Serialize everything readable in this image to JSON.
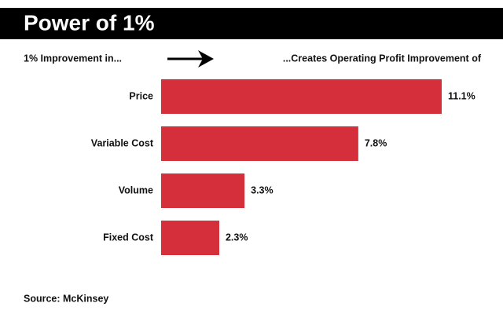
{
  "chart_data": {
    "type": "bar",
    "orientation": "horizontal",
    "title": "Power of 1%",
    "category_header": "1% Improvement in...",
    "value_header": "...Creates Operating Profit Improvement of",
    "categories": [
      "Price",
      "Variable Cost",
      "Volume",
      "Fixed Cost"
    ],
    "values": [
      11.1,
      7.8,
      3.3,
      2.3
    ],
    "value_labels": [
      "11.1%",
      "7.8%",
      "3.3%",
      "2.3%"
    ],
    "color": "#d42f3a",
    "source": "Source: McKinsey"
  }
}
